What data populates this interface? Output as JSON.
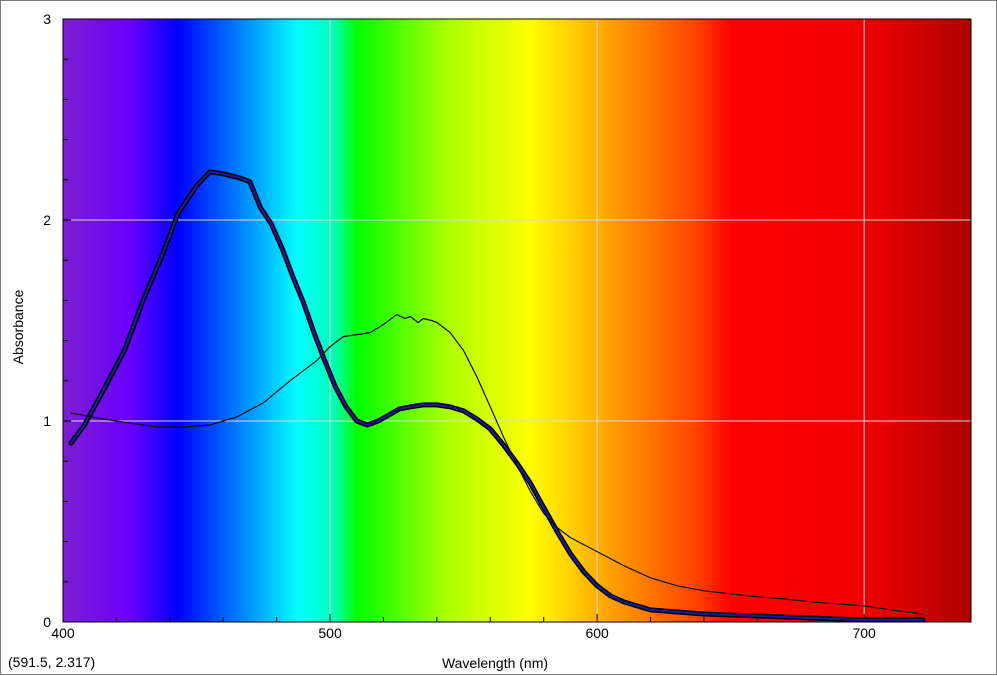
{
  "coordinate_readout": "(591.5, 2.317)",
  "chart_data": {
    "type": "line",
    "title": "",
    "xlabel": "Wavelength (nm)",
    "ylabel": "Absorbance",
    "xlim": [
      400,
      740
    ],
    "ylim": [
      0,
      3
    ],
    "x_ticks": [
      400,
      500,
      600,
      700
    ],
    "x_tick_labels": [
      "400",
      "500",
      "600",
      "700"
    ],
    "y_ticks": [
      0,
      1,
      2,
      3
    ],
    "y_tick_labels": [
      "0",
      "1",
      "2",
      "3"
    ],
    "grid": true,
    "background": "visible light spectrum gradient",
    "spectrum_colors": [
      {
        "wavelength": 400,
        "color": "#7b1fd0"
      },
      {
        "wavelength": 425,
        "color": "#6a00ff"
      },
      {
        "wavelength": 443,
        "color": "#0000ff"
      },
      {
        "wavelength": 470,
        "color": "#0096ff"
      },
      {
        "wavelength": 488,
        "color": "#00ffff"
      },
      {
        "wavelength": 502,
        "color": "#00ffb0"
      },
      {
        "wavelength": 510,
        "color": "#00ff00"
      },
      {
        "wavelength": 545,
        "color": "#b0ff00"
      },
      {
        "wavelength": 575,
        "color": "#ffff00"
      },
      {
        "wavelength": 605,
        "color": "#ffa000"
      },
      {
        "wavelength": 638,
        "color": "#ff4000"
      },
      {
        "wavelength": 650,
        "color": "#ff0000"
      },
      {
        "wavelength": 700,
        "color": "#f00000"
      },
      {
        "wavelength": 740,
        "color": "#b00000"
      }
    ],
    "series": [
      {
        "style": "thick",
        "color": "#0a0a60",
        "x": [
          403,
          408,
          415,
          423,
          430,
          437,
          443,
          450,
          455,
          460,
          466,
          470,
          474,
          478,
          482,
          486,
          490,
          494,
          498,
          502,
          506,
          510,
          514,
          518,
          522,
          526,
          530,
          535,
          540,
          545,
          550,
          555,
          560,
          565,
          570,
          575,
          580,
          585,
          590,
          595,
          600,
          605,
          610,
          620,
          630,
          640,
          650,
          660,
          670,
          680,
          690,
          700,
          710,
          722
        ],
        "y": [
          0.89,
          0.98,
          1.15,
          1.35,
          1.6,
          1.82,
          2.03,
          2.17,
          2.24,
          2.23,
          2.21,
          2.19,
          2.06,
          1.98,
          1.86,
          1.72,
          1.59,
          1.44,
          1.3,
          1.17,
          1.07,
          1.0,
          0.98,
          1.0,
          1.03,
          1.06,
          1.07,
          1.08,
          1.08,
          1.07,
          1.05,
          1.01,
          0.96,
          0.88,
          0.79,
          0.69,
          0.57,
          0.45,
          0.34,
          0.25,
          0.18,
          0.13,
          0.1,
          0.06,
          0.05,
          0.04,
          0.035,
          0.03,
          0.025,
          0.02,
          0.015,
          0.01,
          0.01,
          0.01
        ]
      },
      {
        "style": "thin",
        "color": "#101010",
        "x": [
          403,
          415,
          425,
          435,
          445,
          455,
          465,
          475,
          485,
          495,
          500,
          505,
          510,
          515,
          520,
          523,
          525,
          528,
          530,
          533,
          535,
          538,
          540,
          545,
          550,
          555,
          560,
          565,
          570,
          575,
          580,
          585,
          590,
          600,
          610,
          620,
          630,
          640,
          650,
          660,
          670,
          680,
          690,
          700,
          710,
          722
        ],
        "y": [
          1.04,
          1.01,
          0.99,
          0.97,
          0.97,
          0.98,
          1.02,
          1.09,
          1.2,
          1.3,
          1.37,
          1.42,
          1.43,
          1.44,
          1.48,
          1.51,
          1.53,
          1.51,
          1.52,
          1.49,
          1.51,
          1.5,
          1.49,
          1.44,
          1.35,
          1.22,
          1.07,
          0.92,
          0.78,
          0.65,
          0.54,
          0.47,
          0.42,
          0.35,
          0.28,
          0.22,
          0.18,
          0.155,
          0.14,
          0.125,
          0.115,
          0.1,
          0.09,
          0.08,
          0.06,
          0.04
        ]
      }
    ]
  }
}
